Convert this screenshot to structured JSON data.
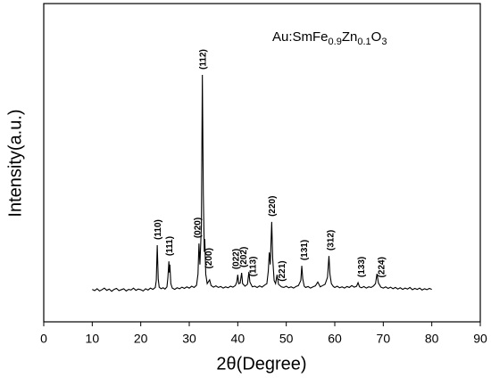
{
  "chart_data": {
    "type": "line",
    "xlabel": "2θ(Degree)",
    "ylabel": "Intensity(a.u.)",
    "annotation": [
      "Au:SmFe",
      "0.9",
      "Zn",
      "0.1",
      "O",
      "3"
    ],
    "xlim": [
      0,
      90
    ],
    "xticks": [
      0,
      10,
      20,
      30,
      40,
      50,
      60,
      70,
      80,
      90
    ],
    "ylim": [
      0,
      100
    ],
    "color": "#000000",
    "x": [
      10,
      10.5,
      11,
      11.5,
      12,
      12.5,
      13,
      13.5,
      14,
      14.5,
      15,
      15.5,
      16,
      16.5,
      17,
      17.5,
      18,
      18.5,
      19,
      19.5,
      20,
      20.5,
      21,
      21.5,
      22,
      22.5,
      23,
      23.2,
      23.4,
      23.6,
      23.8,
      24.2,
      24.6,
      25,
      25.4,
      25.6,
      25.8,
      25.9,
      26,
      26.2,
      26.5,
      27,
      27.5,
      28,
      28.5,
      29,
      29.5,
      30,
      30.5,
      31,
      31.5,
      31.8,
      32,
      32.2,
      32.5,
      32.7,
      32.9,
      33.1,
      33.2,
      33.4,
      33.7,
      34.2,
      34.5,
      35,
      35.5,
      36,
      36.5,
      37,
      37.5,
      38,
      38.5,
      39,
      39.5,
      39.8,
      40,
      40.2,
      40.5,
      40.8,
      41,
      41.5,
      42,
      42.3,
      42.5,
      43,
      43.5,
      44,
      44.5,
      45,
      45.5,
      46,
      46.3,
      46.5,
      46.7,
      47,
      47.2,
      47.5,
      47.8,
      48.1,
      48.4,
      49,
      49.5,
      50,
      50.5,
      51,
      51.5,
      52,
      52.5,
      53,
      53.2,
      53.4,
      53.7,
      54,
      54.5,
      55,
      55.5,
      56,
      56.5,
      57,
      57.5,
      58,
      58.5,
      58.8,
      59,
      59.3,
      59.7,
      60,
      60.5,
      61,
      61.5,
      62,
      62.5,
      63,
      63.5,
      64,
      64.5,
      64.8,
      65.1,
      65.5,
      66,
      66.5,
      67,
      67.5,
      68,
      68.4,
      68.7,
      69,
      69.5,
      70,
      70.5,
      71,
      71.5,
      72,
      72.5,
      73,
      73.5,
      74,
      74.5,
      75,
      75.5,
      76,
      76.5,
      77,
      77.5,
      78,
      78.5,
      79,
      79.5,
      80
    ],
    "values": [
      10.2,
      9.8,
      10.4,
      9.7,
      10.1,
      10.6,
      9.9,
      10.3,
      9.6,
      10.2,
      10.5,
      9.8,
      10.1,
      10.4,
      9.7,
      10.2,
      10.0,
      10.6,
      9.9,
      10.3,
      10.1,
      9.7,
      10.4,
      10.0,
      10.6,
      10.2,
      10.8,
      13,
      24.1,
      13.5,
      10.9,
      10.4,
      10.7,
      10.3,
      11,
      14,
      19,
      15.5,
      18,
      12,
      10.6,
      10.2,
      10.7,
      10.4,
      10.9,
      10.5,
      11,
      10.6,
      11.2,
      10.8,
      11.5,
      15,
      24.6,
      18,
      30,
      77.6,
      40,
      22,
      26,
      15,
      12,
      13.2,
      11.4,
      10.9,
      11.3,
      10.8,
      11.1,
      10.6,
      11,
      10.7,
      11.2,
      10.9,
      11.4,
      12.5,
      14.8,
      12,
      12.2,
      15.4,
      12,
      11.2,
      11.8,
      15.7,
      12.5,
      11,
      11.2,
      10.8,
      11.3,
      10.9,
      11.5,
      12,
      16,
      21.8,
      18,
      31.4,
      20,
      13,
      12,
      14.8,
      11.8,
      11,
      10.8,
      11.2,
      10.7,
      11,
      10.6,
      11.1,
      11.4,
      13,
      17.6,
      13.5,
      11.2,
      10.8,
      11.1,
      10.6,
      11,
      11.3,
      12.5,
      11,
      11.4,
      11.8,
      14,
      20.7,
      15,
      12,
      11.1,
      10.8,
      11.2,
      10.7,
      11,
      10.6,
      11.1,
      10.8,
      11.4,
      10.9,
      11.2,
      12.3,
      11,
      10.7,
      11.1,
      10.6,
      11,
      10.8,
      11.3,
      12,
      15.1,
      12.2,
      10.9,
      10.6,
      11,
      10.5,
      10.9,
      10.4,
      10.8,
      10.3,
      10.7,
      10.2,
      10.6,
      10.3,
      10.8,
      10.1,
      10.5,
      10.2,
      10.6,
      10.0,
      10.4,
      10.1,
      10.5,
      10.2
    ],
    "peaks": [
      {
        "label": "(110)",
        "x": 23.4
      },
      {
        "label": "(111)",
        "x": 25.8
      },
      {
        "label": "(020)",
        "x": 31.6
      },
      {
        "label": "(112)",
        "x": 32.7
      },
      {
        "label": "(200)",
        "x": 33.9
      },
      {
        "label": "(022)",
        "x": 39.5
      },
      {
        "label": "(202)",
        "x": 41.0
      },
      {
        "label": "(113)",
        "x": 43.0
      },
      {
        "label": "(220)",
        "x": 46.9
      },
      {
        "label": "(221)",
        "x": 49.0
      },
      {
        "label": "(131)",
        "x": 53.6
      },
      {
        "label": "(312)",
        "x": 59.0
      },
      {
        "label": "(133)",
        "x": 65.3
      },
      {
        "label": "(224)",
        "x": 69.5
      }
    ]
  }
}
